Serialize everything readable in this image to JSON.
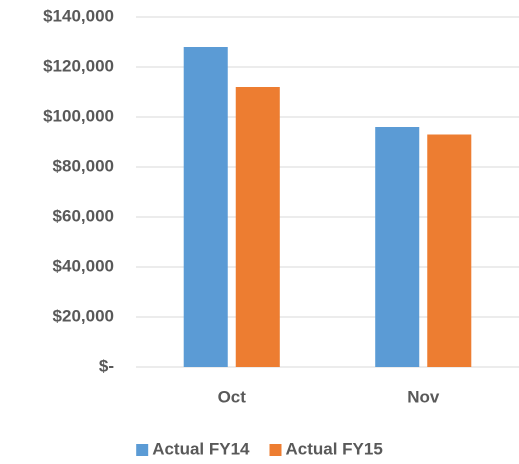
{
  "chart_data": {
    "type": "bar",
    "categories": [
      "Oct",
      "Nov"
    ],
    "series": [
      {
        "name": "Actual FY14",
        "color": "#5b9bd5",
        "values": [
          128000,
          96000
        ]
      },
      {
        "name": "Actual FY15",
        "color": "#ed7d31",
        "values": [
          112000,
          93000
        ]
      }
    ],
    "ylim": [
      0,
      140000
    ],
    "yticks": [
      {
        "value": 0,
        "label": "$-"
      },
      {
        "value": 20000,
        "label": "$20,000"
      },
      {
        "value": 40000,
        "label": "$40,000"
      },
      {
        "value": 60000,
        "label": "$60,000"
      },
      {
        "value": 80000,
        "label": "$80,000"
      },
      {
        "value": 100000,
        "label": "$100,000"
      },
      {
        "value": 120000,
        "label": "$120,000"
      },
      {
        "value": 140000,
        "label": "$140,000"
      }
    ],
    "grid": true,
    "legend": "bottom"
  }
}
